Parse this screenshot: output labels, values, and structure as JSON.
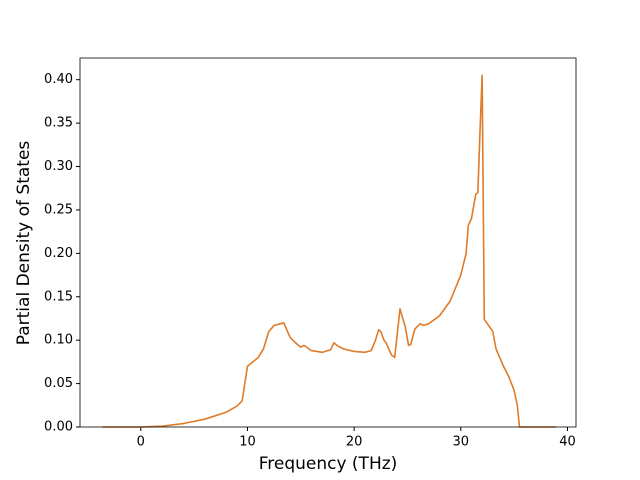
{
  "chart_data": {
    "type": "line",
    "xlabel": "Frequency (THz)",
    "ylabel": "Partial Density of States",
    "color": "#e07b28",
    "x": [
      -3.6,
      0,
      2,
      4,
      6,
      8,
      9,
      9.5,
      10,
      11,
      11.5,
      12,
      12.5,
      13.4,
      14,
      14.5,
      15,
      15.3,
      16,
      17,
      17.8,
      18.1,
      18.5,
      19,
      20,
      21,
      21.6,
      22,
      22.3,
      22.5,
      22.8,
      23,
      23.5,
      23.8,
      24.3,
      24.8,
      25.1,
      25.3,
      25.7,
      26.2,
      26.5,
      27,
      28,
      29,
      30,
      30.5,
      30.7,
      31,
      31.4,
      31.6,
      31.8,
      32,
      32.2,
      32.6,
      33,
      33.3,
      34,
      34.5,
      35,
      35.3,
      35.5,
      38.9
    ],
    "values": [
      0,
      0,
      0.001,
      0.004,
      0.009,
      0.017,
      0.024,
      0.03,
      0.07,
      0.08,
      0.09,
      0.11,
      0.117,
      0.12,
      0.103,
      0.097,
      0.092,
      0.094,
      0.088,
      0.086,
      0.089,
      0.097,
      0.093,
      0.09,
      0.087,
      0.086,
      0.088,
      0.1,
      0.112,
      0.11,
      0.1,
      0.097,
      0.083,
      0.08,
      0.136,
      0.115,
      0.094,
      0.095,
      0.113,
      0.119,
      0.117,
      0.119,
      0.128,
      0.145,
      0.175,
      0.2,
      0.232,
      0.24,
      0.268,
      0.27,
      0.34,
      0.405,
      0.124,
      0.117,
      0.11,
      0.09,
      0.07,
      0.058,
      0.042,
      0.025,
      0,
      0
    ],
    "xlim": [
      -5.7,
      40.8
    ],
    "xticks": [
      0,
      10,
      20,
      30,
      40
    ],
    "ylim": [
      0,
      0.425
    ],
    "yticks": [
      {
        "value": 0,
        "label": "0.00"
      },
      {
        "value": 0.05,
        "label": "0.05"
      },
      {
        "value": 0.1,
        "label": "0.10"
      },
      {
        "value": 0.15,
        "label": "0.15"
      },
      {
        "value": 0.2,
        "label": "0.20"
      },
      {
        "value": 0.25,
        "label": "0.25"
      },
      {
        "value": 0.3,
        "label": "0.30"
      },
      {
        "value": 0.35,
        "label": "0.35"
      },
      {
        "value": 0.4,
        "label": "0.40"
      }
    ],
    "grid": false
  }
}
